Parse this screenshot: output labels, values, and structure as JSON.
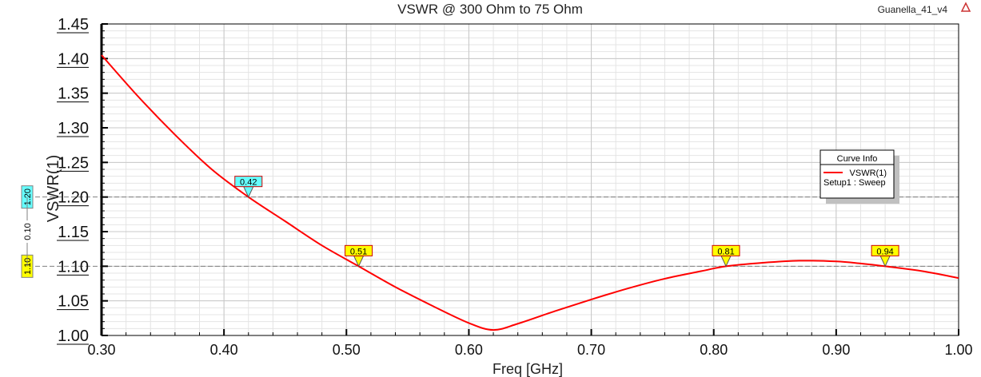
{
  "project_name": "Guanella_41_v4",
  "logo_icon": "ansys-logo-icon",
  "chart_data": {
    "type": "line",
    "title": "VSWR @ 300 Ohm to 75 Ohm",
    "xlabel": "Freq [GHz]",
    "ylabel": "VSWR(1)",
    "xlim": [
      0.3,
      1.0
    ],
    "ylim": [
      1.0,
      1.45
    ],
    "xticks": [
      "0.30",
      "0.40",
      "0.50",
      "0.60",
      "0.70",
      "0.80",
      "0.90",
      "1.00"
    ],
    "yticks": [
      "1.00",
      "1.05",
      "1.10",
      "1.15",
      "1.20",
      "1.25",
      "1.30",
      "1.35",
      "1.40",
      "1.45"
    ],
    "grid": true,
    "series": [
      {
        "name": "VSWR(1)",
        "color": "#ff0000",
        "x": [
          0.3,
          0.33,
          0.36,
          0.39,
          0.42,
          0.45,
          0.48,
          0.51,
          0.54,
          0.57,
          0.6,
          0.62,
          0.64,
          0.67,
          0.7,
          0.73,
          0.76,
          0.79,
          0.81,
          0.84,
          0.87,
          0.9,
          0.92,
          0.94,
          0.97,
          1.0
        ],
        "y": [
          1.405,
          1.345,
          1.29,
          1.24,
          1.2,
          1.165,
          1.13,
          1.1,
          1.07,
          1.043,
          1.018,
          1.008,
          1.017,
          1.035,
          1.052,
          1.068,
          1.082,
          1.093,
          1.1,
          1.105,
          1.108,
          1.107,
          1.104,
          1.1,
          1.093,
          1.083
        ]
      }
    ],
    "legend": {
      "title": "Curve Info",
      "entry": "VSWR(1)",
      "subtitle": "Setup1 : Sweep",
      "placement": "right"
    },
    "markers": [
      {
        "label": "0.42",
        "x": 0.42,
        "y": 1.2,
        "color": "#66ffff"
      },
      {
        "label": "0.51",
        "x": 0.51,
        "y": 1.1,
        "color": "#ffff00"
      },
      {
        "label": "0.81",
        "x": 0.81,
        "y": 1.1,
        "color": "#ffff00"
      },
      {
        "label": "0.94",
        "x": 0.94,
        "y": 1.1,
        "color": "#ffff00"
      }
    ],
    "hlines": [
      {
        "label": "1.20",
        "y": 1.2,
        "color": "#66ffff"
      },
      {
        "label": "1.10",
        "y": 1.1,
        "color": "#ffff00"
      }
    ],
    "delta_label": "0.10"
  }
}
